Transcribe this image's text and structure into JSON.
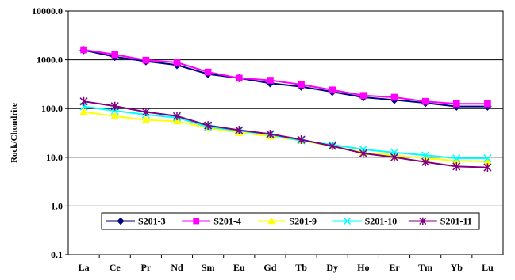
{
  "chart_data": {
    "type": "line",
    "title": "",
    "xlabel": "",
    "ylabel": "Rock/Chondrite",
    "y_scale": "log",
    "ylim": [
      0.1,
      10000
    ],
    "y_ticks": [
      "0.1",
      "1.0",
      "10.0",
      "100.0",
      "1000.0",
      "10000.0"
    ],
    "y_tick_values": [
      0.1,
      1,
      10,
      100,
      1000,
      10000
    ],
    "grid": "horizontal major gridlines",
    "legend_position": "bottom-center",
    "categories": [
      "La",
      "Ce",
      "Pr",
      "Nd",
      "Sm",
      "Eu",
      "Gd",
      "Tb",
      "Dy",
      "Ho",
      "Er",
      "Tm",
      "Yb",
      "Lu"
    ],
    "series": [
      {
        "name": "S201-3",
        "color": "#000080",
        "marker": "diamond",
        "values": [
          1580,
          1150,
          930,
          780,
          510,
          420,
          330,
          280,
          220,
          170,
          150,
          130,
          110,
          110
        ]
      },
      {
        "name": "S201-4",
        "color": "#ff00ff",
        "marker": "square",
        "values": [
          1600,
          1280,
          980,
          880,
          560,
          420,
          380,
          310,
          240,
          185,
          170,
          140,
          125,
          125
        ]
      },
      {
        "name": "S201-9",
        "color": "#ffff00",
        "marker": "triangle",
        "values": [
          85,
          70,
          58,
          55,
          40,
          32,
          27,
          22,
          17,
          12.5,
          11,
          9.5,
          8.5,
          8.2
        ]
      },
      {
        "name": "S201-10",
        "color": "#00ffff",
        "marker": "x",
        "values": [
          110,
          90,
          75,
          65,
          42,
          35,
          29,
          22,
          18,
          14.5,
          12.5,
          11,
          9.5,
          9.5
        ]
      },
      {
        "name": "S201-11",
        "color": "#800080",
        "marker": "star",
        "values": [
          140,
          112,
          85,
          70,
          45,
          36,
          30,
          23,
          17,
          12,
          10,
          8,
          6.5,
          6.2
        ]
      }
    ]
  }
}
